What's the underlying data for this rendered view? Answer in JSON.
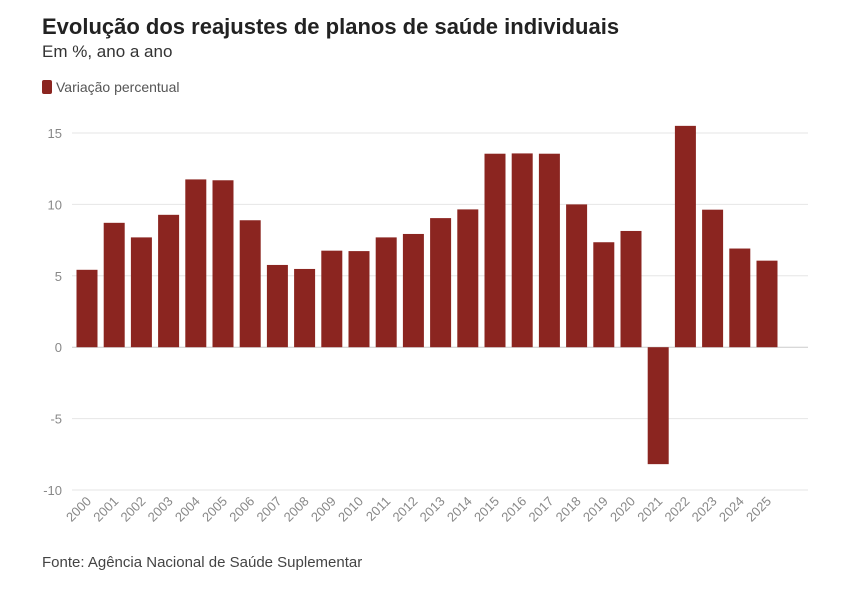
{
  "chart_data": {
    "type": "bar",
    "title": "Evolução dos reajustes de planos de saúde individuais",
    "subtitle": "Em %, ano a ano",
    "legend": {
      "entries": [
        "Variação percentual"
      ],
      "placement": "top-left"
    },
    "categories": [
      "2000",
      "2001",
      "2002",
      "2003",
      "2004",
      "2005",
      "2006",
      "2007",
      "2008",
      "2009",
      "2010",
      "2011",
      "2012",
      "2013",
      "2014",
      "2015",
      "2016",
      "2017",
      "2018",
      "2019",
      "2020",
      "2021",
      "2022",
      "2023",
      "2024",
      "2025"
    ],
    "series": [
      {
        "name": "Variação percentual",
        "values": [
          5.42,
          8.71,
          7.69,
          9.27,
          11.75,
          11.69,
          8.89,
          5.76,
          5.48,
          6.76,
          6.73,
          7.69,
          7.93,
          9.04,
          9.65,
          13.55,
          13.57,
          13.55,
          10.0,
          7.35,
          8.14,
          -8.19,
          15.5,
          9.63,
          6.91,
          6.06
        ]
      }
    ],
    "ylim": [
      -10,
      15
    ],
    "yticks": [
      15,
      10,
      5,
      0,
      -5,
      -10
    ],
    "ytick_labels": [
      "15",
      "10",
      "5",
      "0",
      "-5",
      "-10"
    ],
    "grid": true,
    "xlabel": "",
    "ylabel": "",
    "colors": {
      "bar": "#8b2520",
      "grid": "#e6e6e6",
      "zero_line": "#cccccc"
    },
    "source": "Fonte: Agência Nacional de Saúde Suplementar"
  }
}
